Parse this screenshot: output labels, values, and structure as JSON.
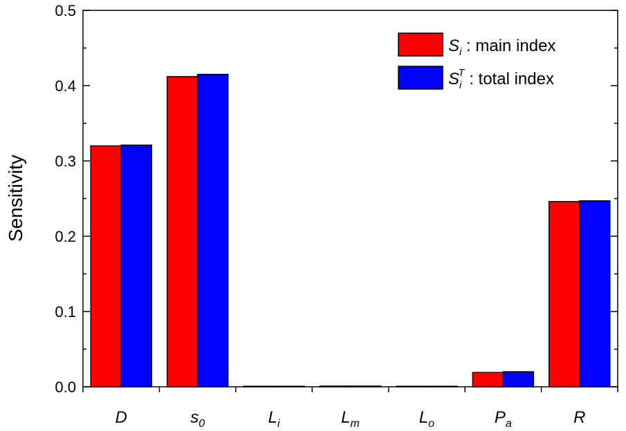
{
  "chart_data": {
    "type": "bar",
    "xlabel": "",
    "ylabel": "Sensitivity",
    "ylim": [
      0,
      0.5
    ],
    "y_ticks": [
      "0.0",
      "0.1",
      "0.2",
      "0.3",
      "0.4",
      "0.5"
    ],
    "categories": [
      {
        "base": "D",
        "sub": ""
      },
      {
        "base": "s",
        "sub": "0"
      },
      {
        "base": "L",
        "sub": "i"
      },
      {
        "base": "L",
        "sub": "m"
      },
      {
        "base": "L",
        "sub": "o"
      },
      {
        "base": "P",
        "sub": "a"
      },
      {
        "base": "R",
        "sub": ""
      }
    ],
    "series": [
      {
        "name": "main index",
        "symbol": "S",
        "sub": "i",
        "sup": "",
        "color": "#ff0000",
        "values": [
          0.32,
          0.412,
          0.0,
          0.001,
          0.0,
          0.019,
          0.246
        ]
      },
      {
        "name": "total index",
        "symbol": "S",
        "sub": "i",
        "sup": "T",
        "color": "#0000ff",
        "values": [
          0.321,
          0.415,
          0.0,
          0.001,
          0.0,
          0.02,
          0.247
        ]
      }
    ],
    "legend_separator": " : ",
    "legend_position": "top-right",
    "grid": false
  }
}
